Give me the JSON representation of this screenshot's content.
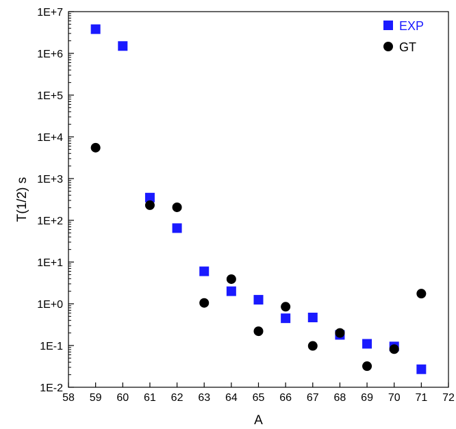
{
  "chart_data": {
    "type": "scatter",
    "title": "",
    "xlabel": "A",
    "ylabel": "T(1/2) s",
    "xlim": [
      58,
      72
    ],
    "ylim": [
      0.01,
      10000000
    ],
    "yscale": "log",
    "grid": false,
    "legend_position": "top-right",
    "x_ticks": [
      58,
      59,
      60,
      61,
      62,
      63,
      64,
      65,
      66,
      67,
      68,
      69,
      70,
      71,
      72
    ],
    "x_tick_labels": [
      "58",
      "59",
      "60",
      "61",
      "62",
      "63",
      "64",
      "65",
      "66",
      "67",
      "68",
      "69",
      "70",
      "71",
      "72"
    ],
    "y_ticks": [
      0.01,
      0.1,
      1,
      10,
      100,
      1000,
      10000,
      100000,
      1000000,
      10000000
    ],
    "y_tick_labels": [
      "1E-2",
      "1E-1",
      "1E+0",
      "1E+1",
      "1E+2",
      "1E+3",
      "1E+4",
      "1E+5",
      "1E+6",
      "1E+7"
    ],
    "series": [
      {
        "name": "EXP",
        "marker": "square",
        "color": "#1a1aff",
        "x": [
          59,
          60,
          61,
          62,
          63,
          64,
          65,
          66,
          67,
          68,
          69,
          70,
          71
        ],
        "y": [
          3800000,
          1500000,
          350,
          65,
          6,
          2,
          1.25,
          0.45,
          0.47,
          0.18,
          0.11,
          0.095,
          0.027
        ]
      },
      {
        "name": "GT",
        "marker": "circle",
        "color": "#000000",
        "x": [
          59,
          61,
          62,
          63,
          64,
          65,
          66,
          67,
          68,
          69,
          70,
          71
        ],
        "y": [
          5500,
          230,
          205,
          1.05,
          3.9,
          0.22,
          0.85,
          0.098,
          0.2,
          0.032,
          0.082,
          1.75
        ]
      }
    ]
  }
}
